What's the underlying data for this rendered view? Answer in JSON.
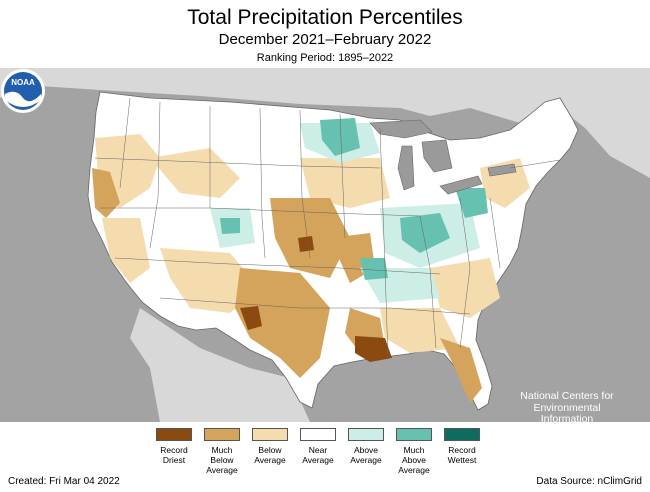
{
  "header": {
    "title": "Total Precipitation Percentiles",
    "subtitle": "December 2021–February 2022",
    "ranking": "Ranking Period: 1895–2022"
  },
  "branding": {
    "logo_name": "noaa-logo",
    "logo_text": "NOAA",
    "org_lines": [
      "National Centers for",
      "Environmental",
      "Information"
    ]
  },
  "legend": {
    "items": [
      {
        "label": "Record\nDriest",
        "color": "#8b4a0f"
      },
      {
        "label": "Much\nBelow\nAverage",
        "color": "#d4a35c"
      },
      {
        "label": "Below\nAverage",
        "color": "#f4dcae"
      },
      {
        "label": "Near\nAverage",
        "color": "#ffffff"
      },
      {
        "label": "Above\nAverage",
        "color": "#cdeee6"
      },
      {
        "label": "Much\nAbove\nAverage",
        "color": "#66c1b1"
      },
      {
        "label": "Record\nWettest",
        "color": "#0d6b60"
      }
    ]
  },
  "footer": {
    "created": "Created: Fri Mar 04 2022",
    "source": "Data Source: nClimGrid"
  },
  "colors": {
    "ocean": "#a3a3a3",
    "land_outside": "#d8d8d8",
    "state_lines": "#666666",
    "lakes": "#9a9a9a",
    "noaa_blue": "#1f5fae"
  }
}
